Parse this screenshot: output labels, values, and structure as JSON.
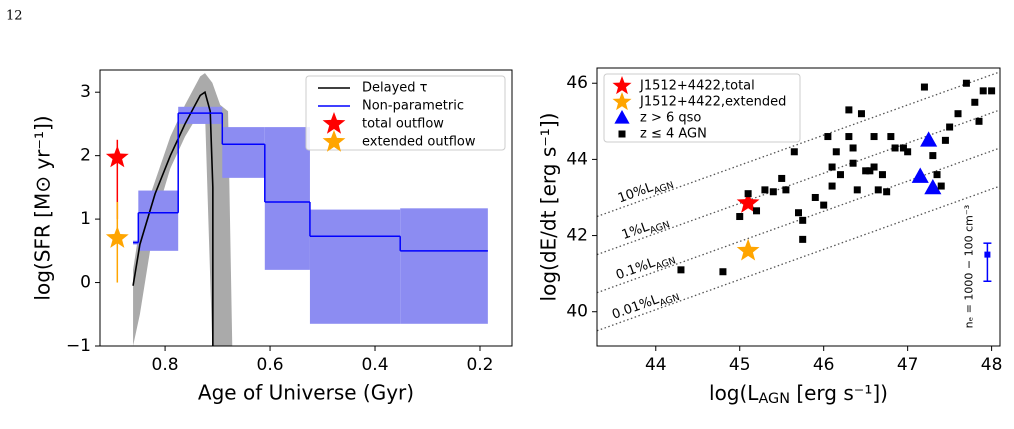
{
  "page_number": "12",
  "chart_data": [
    {
      "type": "line",
      "xlabel": "Age of Universe (Gyr)",
      "ylabel": "log(SFR [M⊙ yr⁻¹])",
      "xlim": [
        0.924,
        0.139
      ],
      "ylim": [
        -1,
        3.35
      ],
      "xticks": [
        0.8,
        0.6,
        0.4,
        0.2
      ],
      "yticks": [
        {
          "value": -1,
          "label": "−1"
        },
        0,
        1,
        2,
        3
      ],
      "legend": "upper right",
      "series": [
        {
          "name": "Delayed τ",
          "color": "#000000",
          "x": [
            0.861,
            0.848,
            0.819,
            0.79,
            0.762,
            0.733,
            0.724,
            0.714,
            0.709,
            0.709
          ],
          "values": [
            -0.05,
            0.6,
            1.4,
            2.0,
            2.5,
            2.95,
            3.0,
            2.7,
            1.5,
            -1
          ],
          "band": {
            "color": "#aaaaaa",
            "x": [
              0.861,
              0.848,
              0.819,
              0.79,
              0.762,
              0.733,
              0.724,
              0.71,
              0.695,
              0.68,
              0.672
            ],
            "lower": [
              -1,
              -0.5,
              1.0,
              1.8,
              2.3,
              2.7,
              2.7,
              -1,
              -1,
              -1,
              -1
            ],
            "upper": [
              0.2,
              0.9,
              1.6,
              2.3,
              2.8,
              3.25,
              3.3,
              3.15,
              2.8,
              2.7,
              -1
            ]
          }
        },
        {
          "name": "Non-parametric",
          "color": "#0000ff",
          "band_color": "#8c8cf2",
          "bins": [
            0.861,
            0.851,
            0.775,
            0.691,
            0.61,
            0.524,
            0.352,
            0.185
          ],
          "values": [
            0.63,
            1.1,
            2.67,
            2.18,
            1.27,
            0.73,
            0.5
          ],
          "lower": [
            0.6,
            0.5,
            2.5,
            1.65,
            0.2,
            -0.65,
            -0.65
          ],
          "upper": [
            0.66,
            1.45,
            2.77,
            2.45,
            2.45,
            1.15,
            1.17
          ]
        }
      ],
      "points": [
        {
          "name": "total outflow",
          "color": "#ff0000",
          "marker": "star",
          "x": 0.891,
          "y": 1.97,
          "yerr_minus": 0.97,
          "yerr_plus": 0.28
        },
        {
          "name": "extended outflow",
          "color": "#ffa500",
          "marker": "star",
          "x": 0.891,
          "y": 0.7,
          "yerr_minus": 0.7,
          "yerr_plus": 0.57
        }
      ]
    },
    {
      "type": "scatter",
      "xlabel": [
        "log(L",
        "AGN",
        " [erg s⁻¹])"
      ],
      "ylabel": "log(dE/dt [erg s⁻¹])",
      "xlim": [
        43.3,
        48.1
      ],
      "ylim": [
        39.1,
        46.4
      ],
      "xticks": [
        44,
        45,
        46,
        47,
        48
      ],
      "yticks": [
        40,
        42,
        44,
        46
      ],
      "legend": "upper left",
      "reference_lines": [
        {
          "label": [
            "10%L",
            "AGN"
          ],
          "x": [
            43.3,
            48.1
          ],
          "y": [
            42.5,
            46.3
          ]
        },
        {
          "label": [
            "1%L",
            "AGN"
          ],
          "x": [
            43.3,
            48.1
          ],
          "y": [
            41.5,
            45.3
          ]
        },
        {
          "label": [
            "0.1%L",
            "AGN"
          ],
          "x": [
            43.3,
            48.1
          ],
          "y": [
            40.5,
            44.3
          ]
        },
        {
          "label": [
            "0.01%L",
            "AGN"
          ],
          "x": [
            43.3,
            48.1
          ],
          "y": [
            39.5,
            43.3
          ]
        }
      ],
      "series": [
        {
          "name": "J1512+4422,total",
          "color": "#ff0000",
          "marker": "star",
          "x": [
            45.1
          ],
          "values": [
            42.85
          ]
        },
        {
          "name": "J1512+4422,extended",
          "color": "#ffa500",
          "marker": "star",
          "x": [
            45.1
          ],
          "values": [
            41.6
          ]
        },
        {
          "name": "z > 6 qso",
          "color": "#0000ff",
          "marker": "triangle",
          "x": [
            47.25,
            47.15,
            47.3
          ],
          "values": [
            44.5,
            43.55,
            43.25
          ]
        },
        {
          "name": "z ≤ 4 AGN",
          "color": "#000000",
          "marker": "square",
          "x": [
            44.3,
            44.8,
            45.0,
            45.1,
            45.2,
            45.3,
            45.4,
            45.5,
            45.55,
            45.65,
            45.7,
            45.75,
            45.75,
            45.9,
            46.0,
            46.05,
            46.1,
            46.1,
            46.15,
            46.2,
            46.3,
            46.3,
            46.35,
            46.35,
            46.4,
            46.45,
            46.5,
            46.55,
            46.6,
            46.6,
            46.65,
            46.7,
            46.75,
            46.8,
            46.85,
            46.95,
            47.0,
            47.2,
            47.3,
            47.35,
            47.4,
            47.45,
            47.5,
            47.6,
            47.7,
            47.8,
            47.85,
            47.9,
            48.0
          ],
          "values": [
            41.1,
            41.05,
            42.5,
            43.1,
            42.65,
            43.2,
            43.15,
            43.5,
            43.2,
            44.2,
            42.6,
            42.4,
            41.9,
            43.0,
            42.8,
            44.6,
            43.3,
            43.8,
            44.2,
            43.6,
            44.6,
            45.3,
            44.3,
            43.9,
            43.2,
            45.2,
            43.7,
            43.7,
            44.6,
            43.8,
            43.2,
            43.6,
            43.15,
            44.6,
            44.3,
            44.3,
            44.2,
            45.9,
            44.1,
            43.6,
            43.3,
            44.5,
            44.85,
            45.2,
            46.0,
            45.5,
            45.0,
            45.8,
            45.8
          ]
        }
      ],
      "errorbar": {
        "label": "nₑ = 1000 − 100 cm⁻³",
        "color": "#0000ff",
        "x": 47.95,
        "y": 41.5,
        "lower": 40.8,
        "upper": 41.8
      }
    }
  ]
}
